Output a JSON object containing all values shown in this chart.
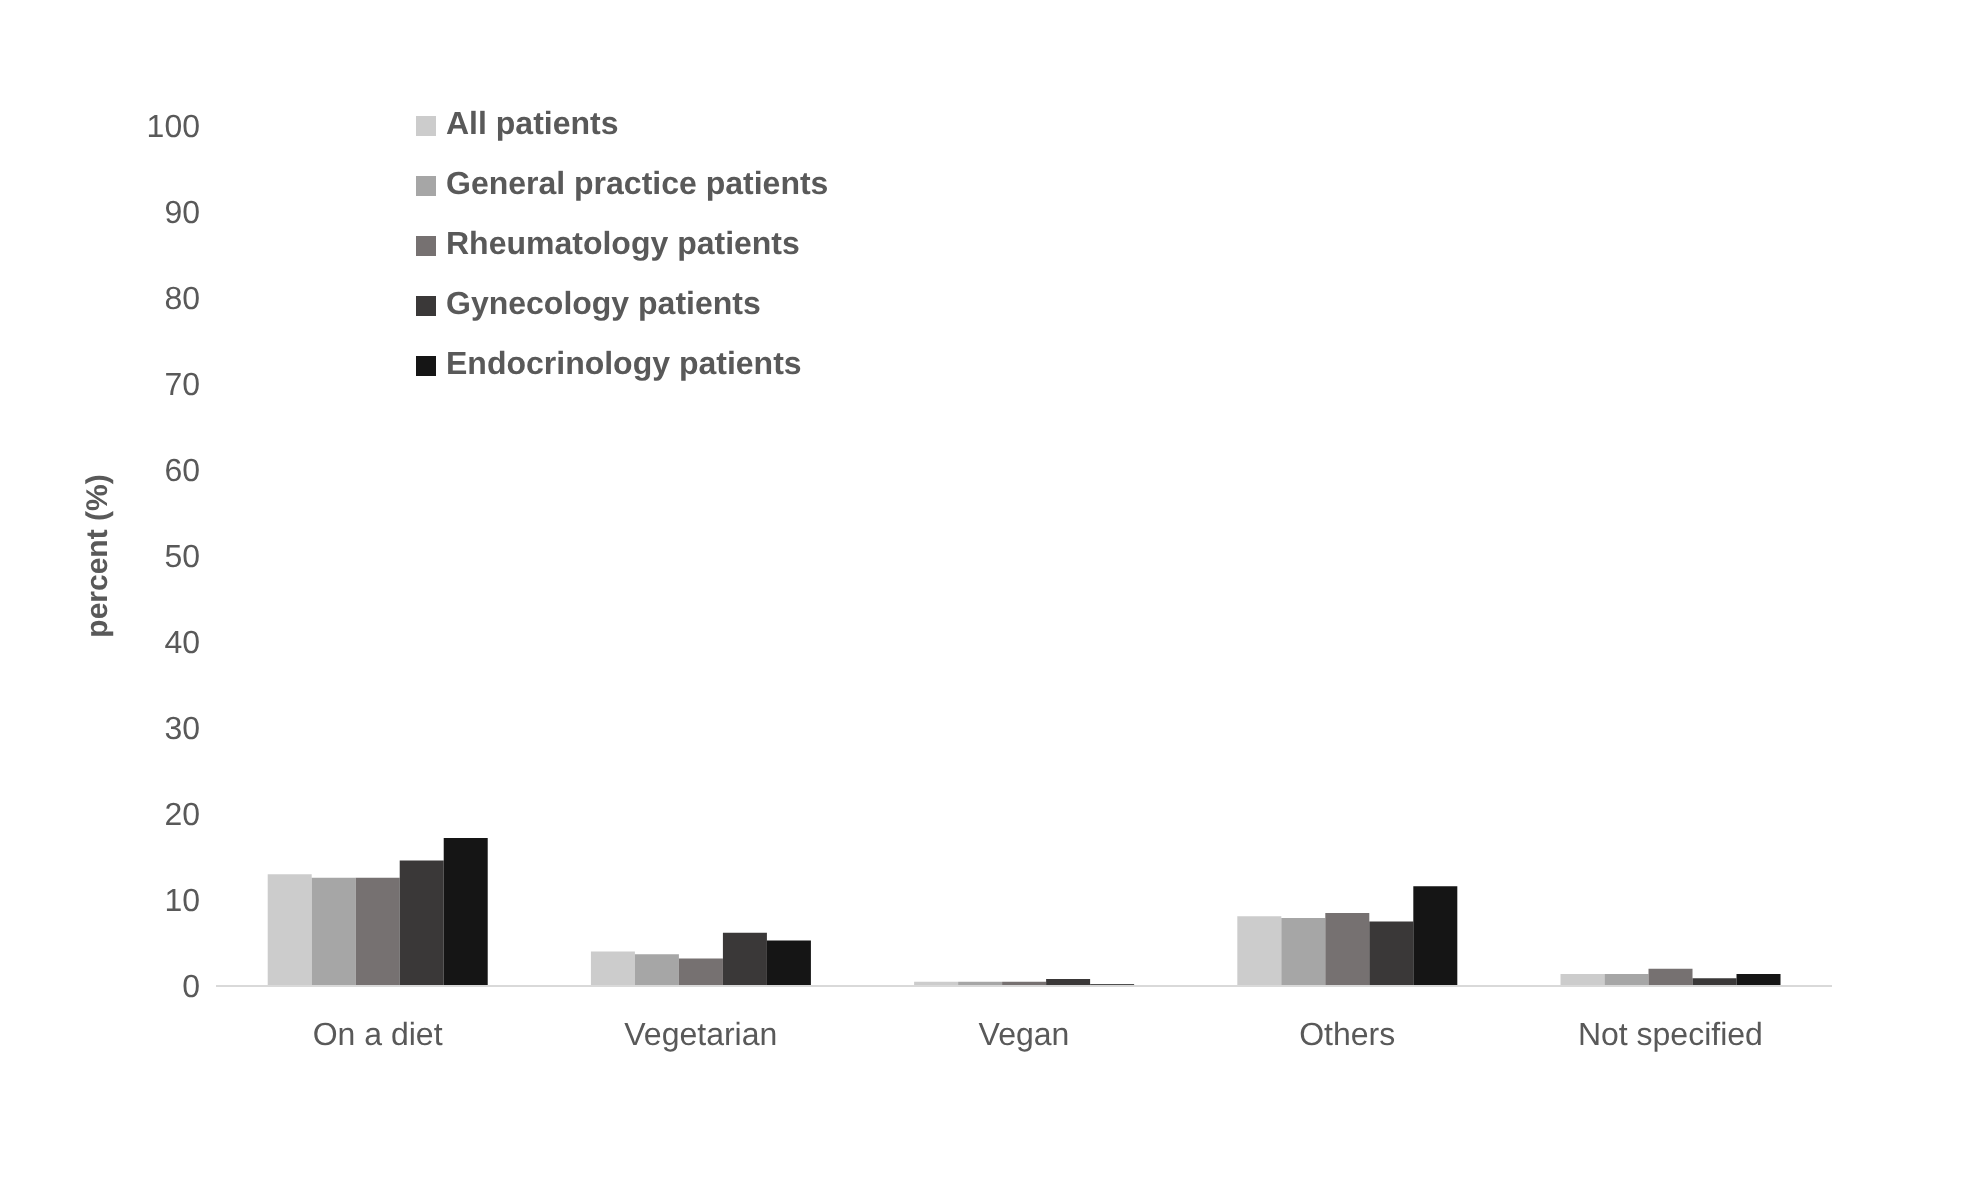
{
  "chart_data": {
    "type": "bar",
    "ylabel": "percent (%)",
    "categories": [
      "On a diet",
      "Vegetarian",
      "Vegan",
      "Others",
      "Not specified"
    ],
    "series": [
      {
        "name": "All patients",
        "color": "#cccccc",
        "values": [
          13.0,
          4.0,
          0.5,
          8.1,
          1.4
        ]
      },
      {
        "name": "General practice patients",
        "color": "#a6a6a6",
        "values": [
          12.6,
          3.7,
          0.5,
          7.9,
          1.4
        ]
      },
      {
        "name": "Rheumatology patients",
        "color": "#767171",
        "values": [
          12.6,
          3.2,
          0.5,
          8.5,
          2.0
        ]
      },
      {
        "name": "Gynecology patients",
        "color": "#3a3838",
        "values": [
          14.6,
          6.2,
          0.8,
          7.5,
          0.9
        ]
      },
      {
        "name": "Endocrinology patients",
        "color": "#151515",
        "values": [
          17.2,
          5.3,
          0.2,
          11.6,
          1.4
        ]
      }
    ],
    "ylim": [
      0,
      100
    ],
    "yticks": [
      0,
      10,
      20,
      30,
      40,
      50,
      60,
      70,
      80,
      90,
      100
    ],
    "grid": false,
    "legend": "top left"
  }
}
